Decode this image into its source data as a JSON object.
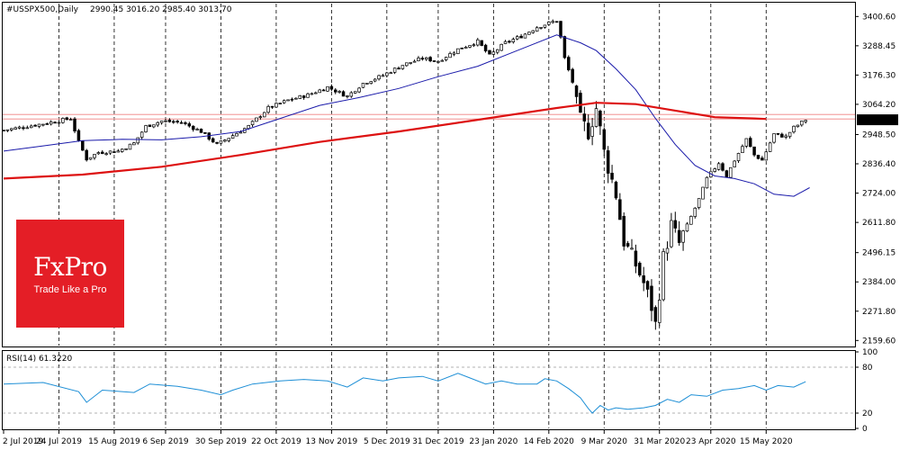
{
  "header": {
    "symbol": "#USSPX500,Daily",
    "ohlc": "2990.45 3016.20 2985.40 3013.70"
  },
  "logo": {
    "name": "FxPro",
    "tagline": "Trade Like a Pro"
  },
  "colors": {
    "price_candles": "#000000",
    "ma_short": "#1a1aaa",
    "ma_long": "#dd1111",
    "horizontal_level": "#f4a6a6",
    "rsi_line": "#1e8fd6",
    "brand_red": "#e41e26"
  },
  "chart_data": [
    {
      "type": "candlestick",
      "name": "price",
      "price_axis_ticks": [
        "3400.60",
        "3288.45",
        "3176.30",
        "3064.20",
        "2948.50",
        "2836.40",
        "2724.00",
        "2611.80",
        "2496.15",
        "2384.00",
        "2271.80",
        "2159.60"
      ],
      "ylim": [
        2140,
        3450
      ],
      "time_labels": [
        "2 Jul 2019",
        "24 Jul 2019",
        "15 Aug 2019",
        "6 Sep 2019",
        "30 Sep 2019",
        "22 Oct 2019",
        "13 Nov 2019",
        "5 Dec 2019",
        "31 Dec 2019",
        "23 Jan 2020",
        "14 Feb 2020",
        "9 Mar 2020",
        "31 Mar 2020",
        "23 Apr 2020",
        "15 May 2020"
      ],
      "grid": "vertical dashed at each date label",
      "price_path": [
        [
          0,
          2965
        ],
        [
          10,
          2990
        ],
        [
          17,
          3010
        ],
        [
          19,
          2920
        ],
        [
          21,
          2855
        ],
        [
          24,
          2880
        ],
        [
          29,
          2885
        ],
        [
          33,
          2915
        ],
        [
          36,
          2980
        ],
        [
          40,
          3000
        ],
        [
          45,
          2995
        ],
        [
          50,
          2960
        ],
        [
          54,
          2910
        ],
        [
          58,
          2945
        ],
        [
          62,
          2980
        ],
        [
          67,
          3050
        ],
        [
          72,
          3080
        ],
        [
          77,
          3100
        ],
        [
          82,
          3130
        ],
        [
          87,
          3095
        ],
        [
          91,
          3145
        ],
        [
          96,
          3175
        ],
        [
          101,
          3215
        ],
        [
          106,
          3240
        ],
        [
          110,
          3230
        ],
        [
          115,
          3275
        ],
        [
          120,
          3305
        ],
        [
          123,
          3250
        ],
        [
          127,
          3300
        ],
        [
          131,
          3325
        ],
        [
          135,
          3360
        ],
        [
          140,
          3385
        ],
        [
          141,
          3320
        ],
        [
          142,
          3240
        ],
        [
          144,
          3150
        ],
        [
          145,
          3060
        ],
        [
          146,
          3000
        ],
        [
          148,
          2960
        ],
        [
          150,
          3050
        ],
        [
          152,
          2880
        ],
        [
          155,
          2720
        ],
        [
          157,
          2540
        ],
        [
          160,
          2450
        ],
        [
          162,
          2380
        ],
        [
          164,
          2290
        ],
        [
          165,
          2220
        ],
        [
          167,
          2475
        ],
        [
          169,
          2600
        ],
        [
          171,
          2530
        ],
        [
          173,
          2600
        ],
        [
          176,
          2700
        ],
        [
          178,
          2780
        ],
        [
          181,
          2840
        ],
        [
          183,
          2790
        ],
        [
          185,
          2850
        ],
        [
          188,
          2930
        ],
        [
          190,
          2870
        ],
        [
          192,
          2850
        ],
        [
          195,
          2950
        ],
        [
          198,
          2940
        ],
        [
          200,
          2975
        ],
        [
          203,
          3005
        ]
      ],
      "series": [
        {
          "name": "",
          "values": [
            [
              0,
              2885
            ],
            [
              10,
              2905
            ],
            [
              20,
              2925
            ],
            [
              30,
              2930
            ],
            [
              40,
              2928
            ],
            [
              50,
              2940
            ],
            [
              60,
              2960
            ],
            [
              70,
              3010
            ],
            [
              80,
              3060
            ],
            [
              90,
              3090
            ],
            [
              100,
              3125
            ],
            [
              110,
              3170
            ],
            [
              120,
              3210
            ],
            [
              130,
              3270
            ],
            [
              140,
              3330
            ],
            [
              146,
              3300
            ],
            [
              150,
              3270
            ],
            [
              155,
              3200
            ],
            [
              160,
              3120
            ],
            [
              165,
              3010
            ],
            [
              170,
              2910
            ],
            [
              175,
              2830
            ],
            [
              180,
              2790
            ],
            [
              185,
              2780
            ],
            [
              190,
              2760
            ],
            [
              195,
              2720
            ],
            [
              200,
              2712
            ],
            [
              204,
              2745
            ]
          ]
        },
        {
          "name": "",
          "values": [
            [
              0,
              2780
            ],
            [
              20,
              2795
            ],
            [
              40,
              2825
            ],
            [
              60,
              2870
            ],
            [
              80,
              2920
            ],
            [
              100,
              2960
            ],
            [
              120,
              3005
            ],
            [
              140,
              3050
            ],
            [
              150,
              3070
            ],
            [
              160,
              3065
            ],
            [
              170,
              3040
            ],
            [
              180,
              3015
            ],
            [
              190,
              3010
            ],
            [
              193,
              3008
            ]
          ]
        }
      ],
      "horizontal_lines": [
        3025,
        3008
      ]
    },
    {
      "type": "line",
      "name": "rsi",
      "label": "RSI(14) 61.3220",
      "levels": [
        80,
        20
      ],
      "axis_ticks": [
        "100",
        "80",
        "20",
        "0"
      ],
      "ylim": [
        0,
        100
      ],
      "values": [
        [
          0,
          58
        ],
        [
          10,
          60
        ],
        [
          19,
          48
        ],
        [
          21,
          34
        ],
        [
          25,
          50
        ],
        [
          33,
          47
        ],
        [
          37,
          58
        ],
        [
          44,
          55
        ],
        [
          50,
          50
        ],
        [
          55,
          44
        ],
        [
          58,
          50
        ],
        [
          63,
          58
        ],
        [
          70,
          62
        ],
        [
          76,
          64
        ],
        [
          82,
          62
        ],
        [
          87,
          54
        ],
        [
          91,
          66
        ],
        [
          96,
          62
        ],
        [
          100,
          66
        ],
        [
          106,
          68
        ],
        [
          110,
          62
        ],
        [
          115,
          72
        ],
        [
          118,
          66
        ],
        [
          122,
          58
        ],
        [
          126,
          62
        ],
        [
          130,
          58
        ],
        [
          135,
          58
        ],
        [
          137,
          65
        ],
        [
          140,
          62
        ],
        [
          143,
          52
        ],
        [
          146,
          40
        ],
        [
          148,
          26
        ],
        [
          149,
          20
        ],
        [
          151,
          30
        ],
        [
          153,
          24
        ],
        [
          155,
          27
        ],
        [
          158,
          25
        ],
        [
          162,
          27
        ],
        [
          165,
          30
        ],
        [
          168,
          38
        ],
        [
          171,
          34
        ],
        [
          174,
          44
        ],
        [
          178,
          42
        ],
        [
          182,
          50
        ],
        [
          186,
          52
        ],
        [
          190,
          56
        ],
        [
          193,
          50
        ],
        [
          196,
          56
        ],
        [
          200,
          54
        ],
        [
          203,
          61
        ]
      ]
    }
  ]
}
